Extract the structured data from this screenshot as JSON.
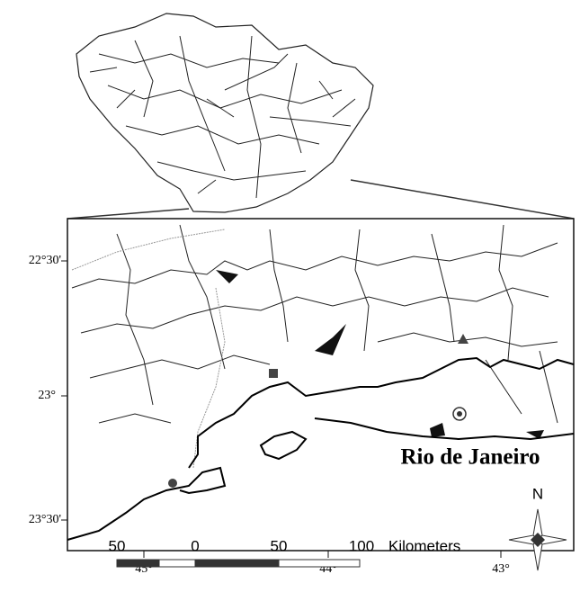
{
  "latitude_labels": [
    "22°30'",
    "23°",
    "23°30'"
  ],
  "longitude_labels": [
    "45°",
    "44°",
    "43°"
  ],
  "place_label": "Rio de Janeiro",
  "north_arrow": "N",
  "scale_bar": {
    "labels": [
      "50",
      "0",
      "50",
      "100"
    ],
    "unit": "Kilometers"
  }
}
